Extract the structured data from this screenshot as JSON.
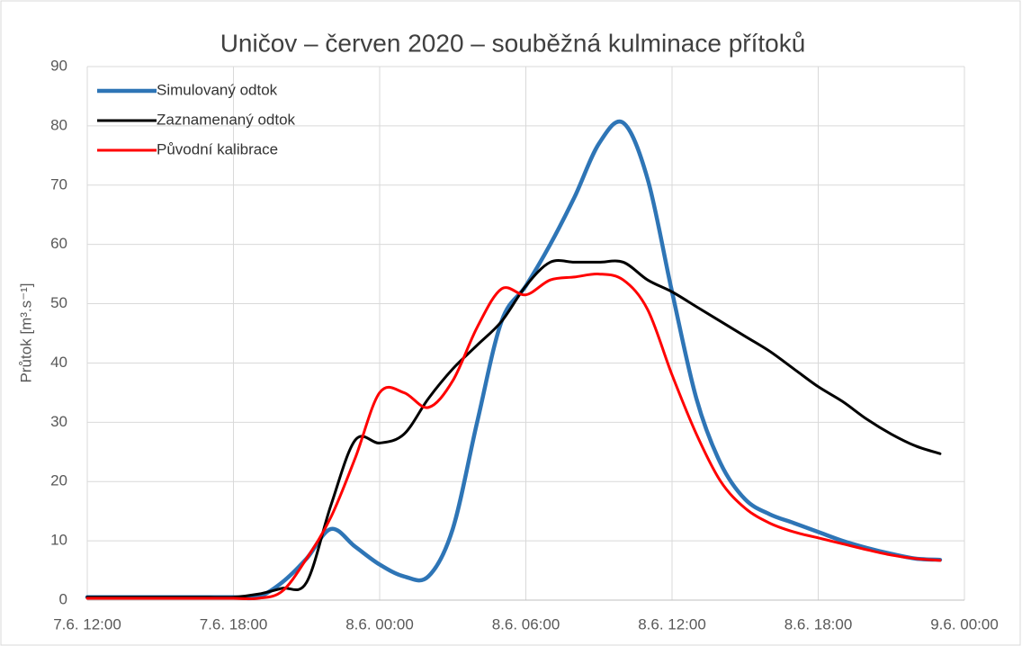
{
  "chart_data": {
    "type": "line",
    "title": "Uničov – červen 2020 – souběžná kulminace přítoků",
    "y_label": "Průtok [m³.s⁻¹]",
    "x": [
      "7.6. 12:00",
      "7.6. 13:00",
      "7.6. 14:00",
      "7.6. 15:00",
      "7.6. 16:00",
      "7.6. 17:00",
      "7.6. 18:00",
      "7.6. 19:00",
      "7.6. 20:00",
      "7.6. 21:00",
      "7.6. 22:00",
      "7.6. 23:00",
      "8.6. 00:00",
      "8.6. 01:00",
      "8.6. 02:00",
      "8.6. 03:00",
      "8.6. 04:00",
      "8.6. 05:00",
      "8.6. 06:00",
      "8.6. 07:00",
      "8.6. 08:00",
      "8.6. 09:00",
      "8.6. 10:00",
      "8.6. 11:00",
      "8.6. 12:00",
      "8.6. 13:00",
      "8.6. 14:00",
      "8.6. 15:00",
      "8.6. 16:00",
      "8.6. 17:00",
      "8.6. 18:00",
      "8.6. 19:00",
      "8.6. 20:00",
      "8.6. 21:00",
      "8.6. 22:00",
      "8.6. 23:00"
    ],
    "series": [
      {
        "name": "Simulovaný odtok",
        "color": "#2e75b6",
        "width": 4.5,
        "values": [
          0.5,
          0.5,
          0.5,
          0.5,
          0.5,
          0.5,
          0.5,
          0.5,
          3,
          7,
          12,
          9,
          6,
          4,
          4,
          12,
          30,
          47,
          53,
          60,
          68,
          77,
          80.5,
          71,
          52,
          34,
          23,
          17,
          14.5,
          13,
          11.5,
          10,
          8.8,
          7.8,
          7,
          6.8
        ]
      },
      {
        "name": "Zaznamenaný odtok",
        "color": "#000000",
        "width": 3,
        "values": [
          0.5,
          0.5,
          0.5,
          0.5,
          0.5,
          0.5,
          0.5,
          1,
          2,
          3,
          16,
          27,
          26.5,
          28,
          34,
          39,
          43,
          47,
          53,
          57,
          57,
          57,
          57,
          54,
          52,
          49.5,
          47,
          44.5,
          42,
          39,
          36,
          33.5,
          30.5,
          28,
          26,
          24.7
        ]
      },
      {
        "name": "Původní kalibrace",
        "color": "#ff0000",
        "width": 3,
        "values": [
          0.3,
          0.3,
          0.3,
          0.3,
          0.3,
          0.3,
          0.3,
          0.3,
          1.5,
          7,
          14,
          24,
          35,
          35,
          32.5,
          37,
          46,
          52.5,
          51.5,
          54,
          54.5,
          55,
          54,
          49,
          38,
          28,
          20,
          15.5,
          13,
          11.5,
          10.5,
          9.5,
          8.5,
          7.6,
          7,
          6.7
        ]
      }
    ],
    "xlim": [
      "7.6. 12:00",
      "9.6. 00:00"
    ],
    "xticks": [
      "7.6. 12:00",
      "7.6. 18:00",
      "8.6. 00:00",
      "8.6. 06:00",
      "8.6. 12:00",
      "8.6. 18:00",
      "9.6. 00:00"
    ],
    "ylim": [
      0,
      90
    ],
    "yticks": [
      0,
      10,
      20,
      30,
      40,
      50,
      60,
      70,
      80,
      90
    ],
    "grid": true,
    "legend": "top-left"
  }
}
